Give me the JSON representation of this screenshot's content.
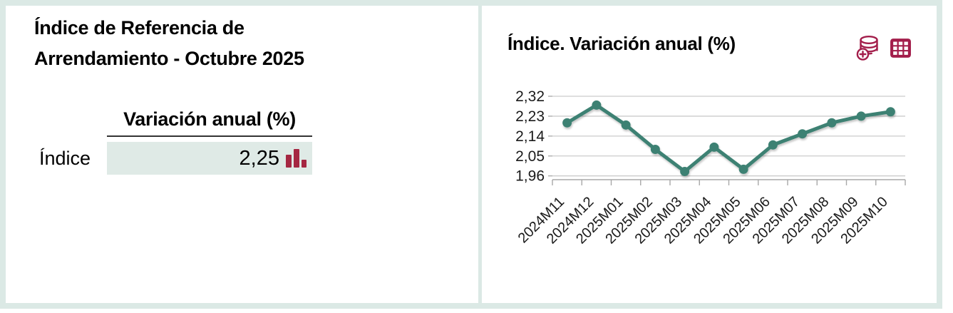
{
  "card": {
    "left_panel": {
      "title": "Índice de Referencia de Arrendamiento - Octubre 2025",
      "table": {
        "value_column_header": "Variación anual (%)",
        "rows": [
          {
            "label": "Índice",
            "value": "2,25"
          }
        ],
        "sparkline_icon": "mini-bar-chart-icon",
        "sparkline_color": "#a52742"
      }
    },
    "right_panel": {
      "title": "Índice. Variación anual (%)",
      "toolbar_icons": [
        {
          "name": "database-add-icon"
        },
        {
          "name": "table-grid-icon"
        }
      ],
      "icon_color": "#a31e4b"
    },
    "frame_color": "#dbe9e5"
  },
  "chart_data": {
    "type": "line",
    "title": "Índice. Variación anual (%)",
    "categories": [
      "2024M11",
      "2024M12",
      "2025M01",
      "2025M02",
      "2025M03",
      "2025M04",
      "2025M05",
      "2025M06",
      "2025M07",
      "2025M08",
      "2025M09",
      "2025M10"
    ],
    "series": [
      {
        "name": "Índice",
        "values": [
          2.2,
          2.28,
          2.19,
          2.08,
          1.98,
          2.09,
          1.99,
          2.1,
          2.15,
          2.2,
          2.23,
          2.25
        ],
        "color": "#3e8173"
      }
    ],
    "y_ticks": [
      {
        "value": 2.32,
        "label": "2,32"
      },
      {
        "value": 2.23,
        "label": "2,23"
      },
      {
        "value": 2.14,
        "label": "2,14"
      },
      {
        "value": 2.05,
        "label": "2,05"
      },
      {
        "value": 1.96,
        "label": "1,96"
      }
    ],
    "ylim": [
      1.94,
      2.34
    ],
    "grid": true,
    "legend_position": "none",
    "marker": "circle",
    "x_label_rotation": -45,
    "grid_color": "#cccccc",
    "axis_color": "#a8a8a8",
    "tick_text_color": "#1a1a1a"
  }
}
